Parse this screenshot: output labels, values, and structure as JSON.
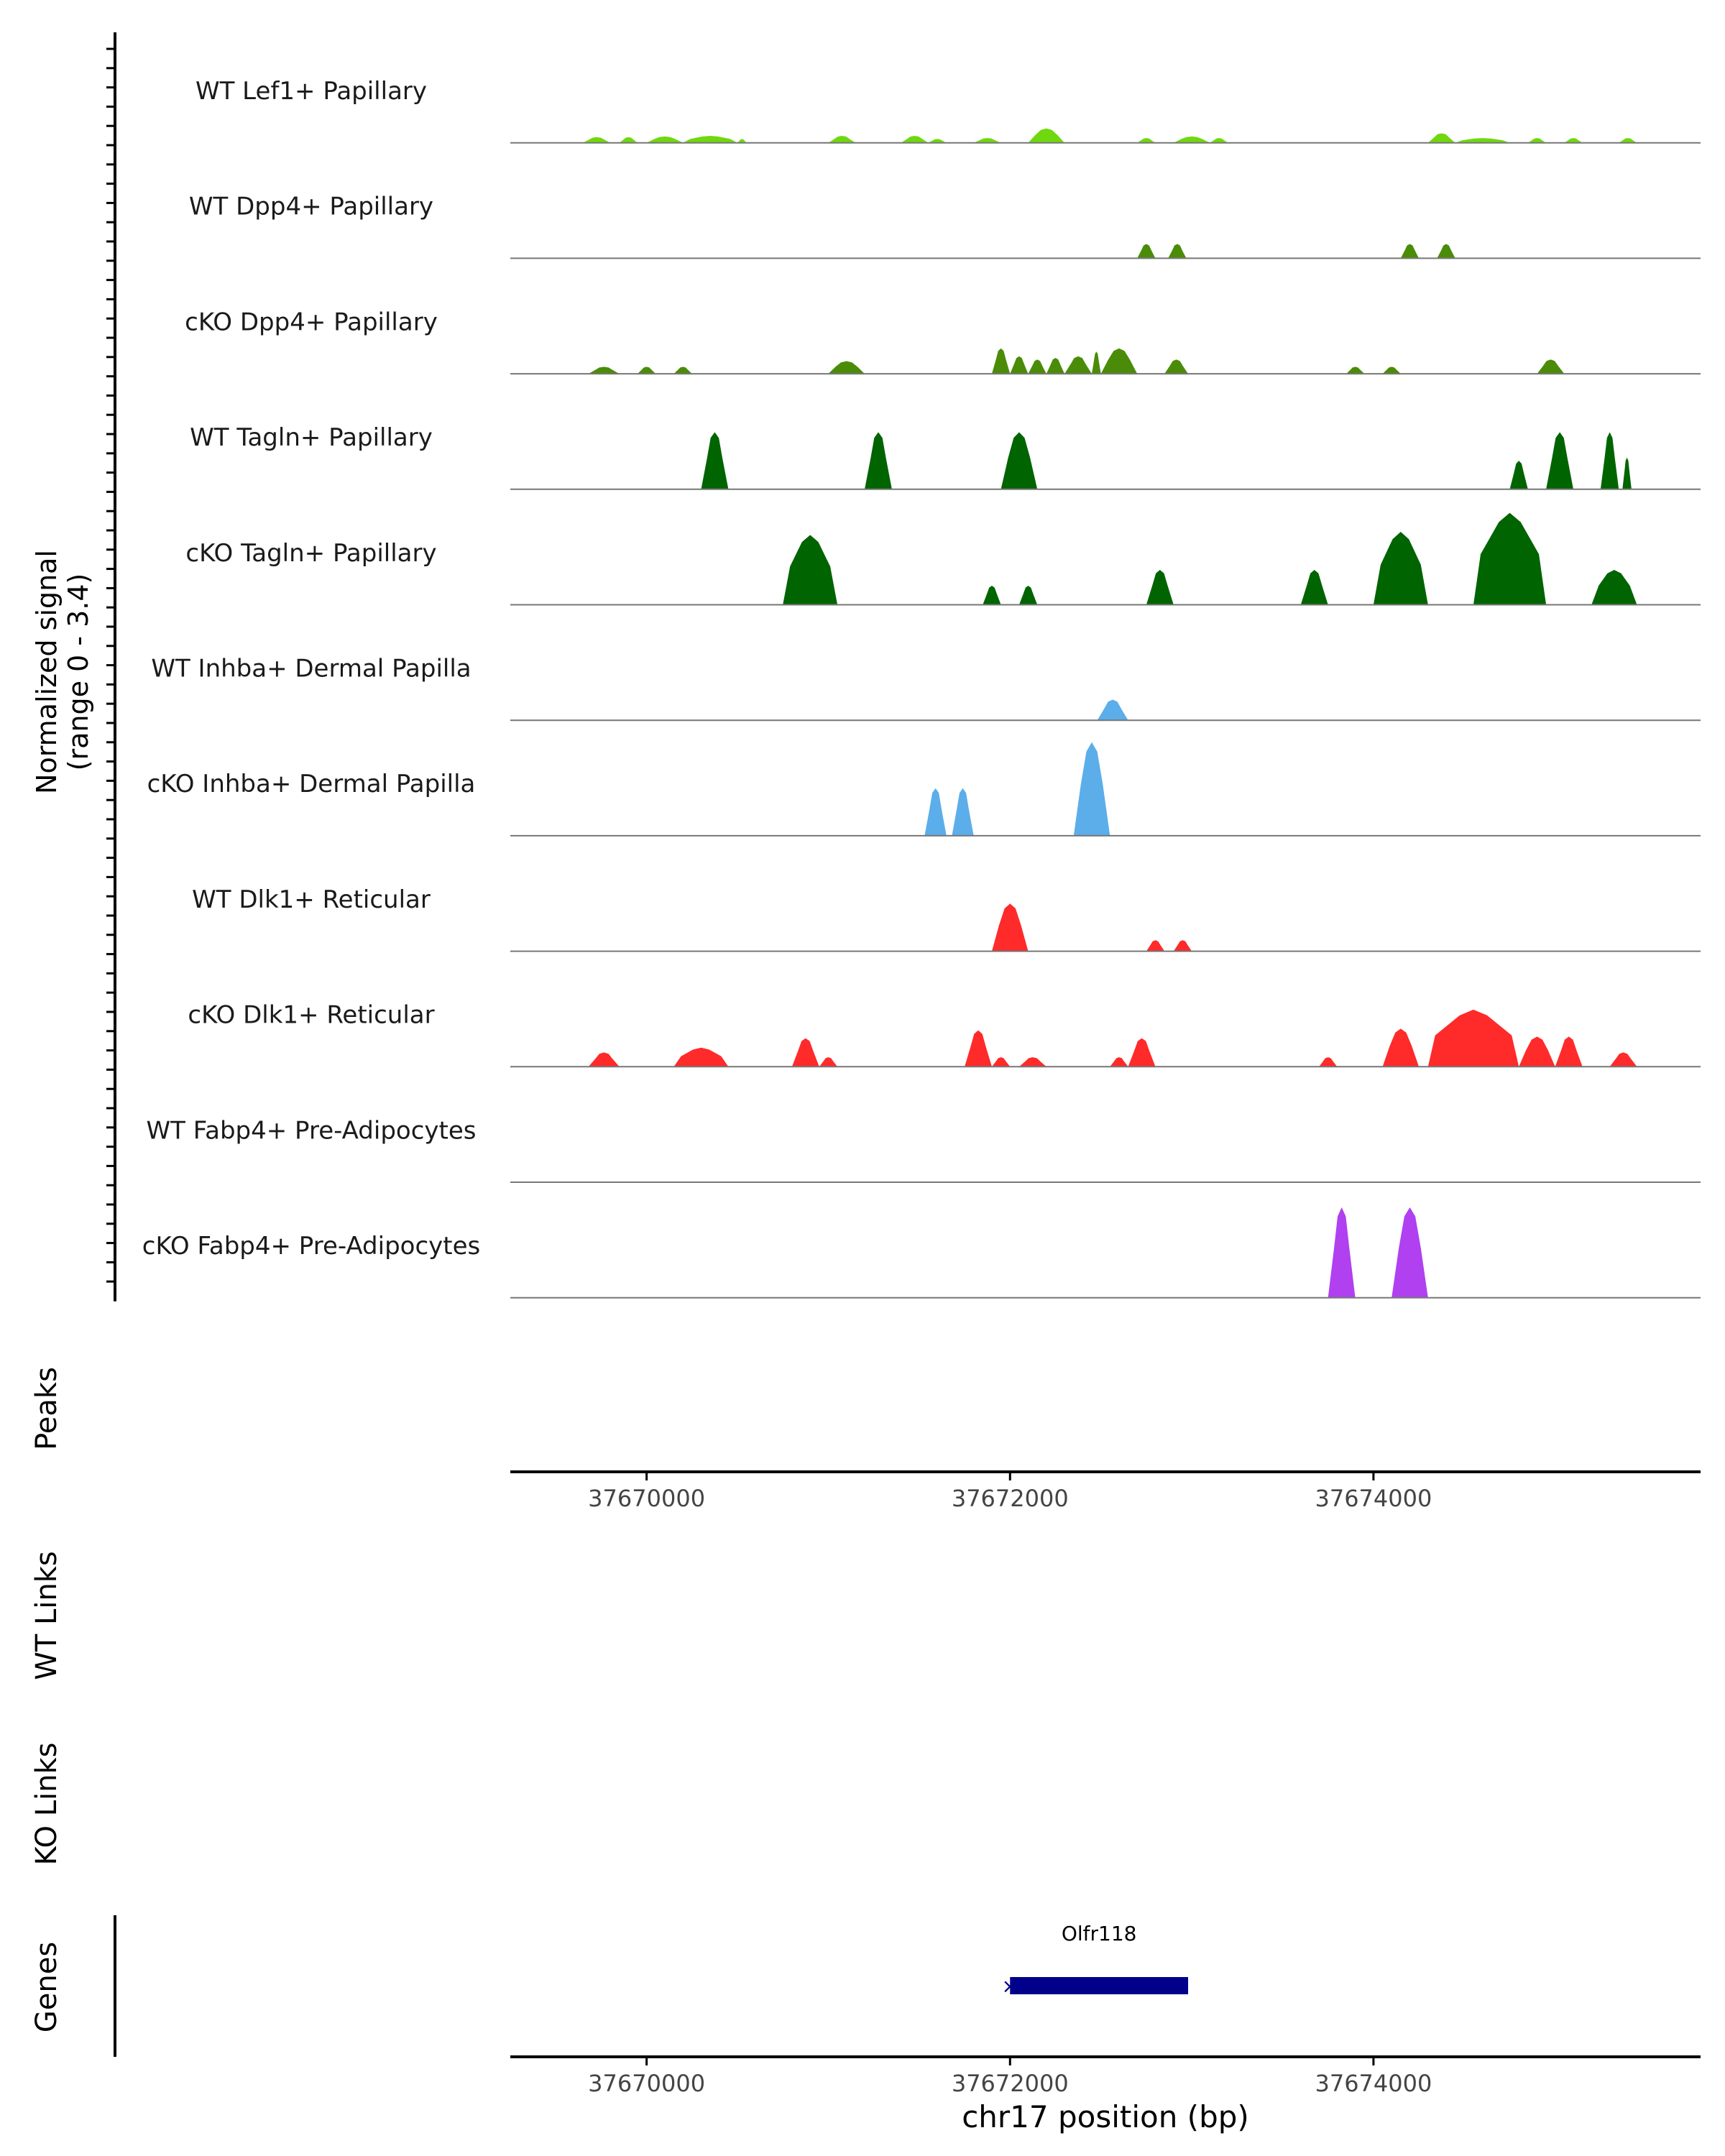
{
  "chart_data": {
    "type": "area",
    "chromosome": "chr17",
    "x_range": [
      37669250,
      37675800
    ],
    "y_range": [
      0,
      3.4
    ],
    "y_axis_label_line1": "Normalized signal",
    "y_axis_label_line2": "(range 0 - 3.4)",
    "x_axis_label": "chr17 position (bp)",
    "x_ticks": [
      37670000,
      37672000,
      37674000
    ],
    "x_tick_labels": [
      "37670000",
      "37672000",
      "37674000"
    ],
    "tracks": [
      {
        "name": "WT Lef1+ Papillary",
        "color": "#6fd80e",
        "peaks": [
          [
            37669650,
            37669800,
            0.18
          ],
          [
            37669850,
            37669950,
            0.18
          ],
          [
            37670000,
            37670200,
            0.2
          ],
          [
            37670200,
            37670500,
            0.22
          ],
          [
            37670500,
            37670550,
            0.12
          ],
          [
            37671000,
            37671150,
            0.22
          ],
          [
            37671400,
            37671550,
            0.22
          ],
          [
            37671550,
            37671650,
            0.12
          ],
          [
            37671800,
            37671950,
            0.15
          ],
          [
            37672100,
            37672300,
            0.45
          ],
          [
            37672700,
            37672800,
            0.15
          ],
          [
            37672900,
            37673100,
            0.2
          ],
          [
            37673100,
            37673200,
            0.15
          ],
          [
            37674300,
            37674450,
            0.3
          ],
          [
            37674450,
            37674750,
            0.15
          ],
          [
            37674850,
            37674950,
            0.15
          ],
          [
            37675050,
            37675150,
            0.15
          ],
          [
            37675350,
            37675450,
            0.15
          ]
        ]
      },
      {
        "name": "WT Dpp4+ Papillary",
        "color": "#4a8c08",
        "peaks": [
          [
            37672700,
            37672800,
            0.45
          ],
          [
            37672870,
            37672970,
            0.45
          ],
          [
            37674150,
            37674250,
            0.45
          ],
          [
            37674350,
            37674450,
            0.45
          ]
        ]
      },
      {
        "name": "cKO Dpp4+ Papillary",
        "color": "#4a8c08",
        "peaks": [
          [
            37669680,
            37669850,
            0.22
          ],
          [
            37669950,
            37670050,
            0.22
          ],
          [
            37670150,
            37670250,
            0.22
          ],
          [
            37671000,
            37671200,
            0.4
          ],
          [
            37671900,
            37672000,
            0.8
          ],
          [
            37672000,
            37672100,
            0.55
          ],
          [
            37672100,
            37672200,
            0.45
          ],
          [
            37672200,
            37672300,
            0.5
          ],
          [
            37672300,
            37672450,
            0.55
          ],
          [
            37672450,
            37672500,
            0.7
          ],
          [
            37672500,
            37672700,
            0.8
          ],
          [
            37672850,
            37672980,
            0.45
          ],
          [
            37673850,
            37673950,
            0.22
          ],
          [
            37674050,
            37674150,
            0.22
          ],
          [
            37674900,
            37675050,
            0.45
          ]
        ]
      },
      {
        "name": "WT Tagln+ Papillary",
        "color": "#006400",
        "peaks": [
          [
            37670300,
            37670450,
            1.8
          ],
          [
            37671200,
            37671350,
            1.8
          ],
          [
            37671950,
            37672150,
            1.8
          ],
          [
            37674750,
            37674850,
            0.9
          ],
          [
            37674950,
            37675100,
            1.8
          ],
          [
            37675250,
            37675350,
            1.8
          ],
          [
            37675370,
            37675420,
            1.0
          ]
        ]
      },
      {
        "name": "cKO Tagln+ Papillary",
        "color": "#006400",
        "peaks": [
          [
            37670750,
            37671050,
            2.2
          ],
          [
            37671850,
            37671950,
            0.6
          ],
          [
            37672050,
            37672150,
            0.6
          ],
          [
            37672750,
            37672900,
            1.1
          ],
          [
            37673600,
            37673750,
            1.1
          ],
          [
            37674000,
            37674300,
            2.3
          ],
          [
            37674550,
            37674950,
            2.9
          ],
          [
            37675200,
            37675450,
            1.1
          ]
        ]
      },
      {
        "name": "WT Inhba+ Dermal Papilla",
        "color": "#5baeea",
        "peaks": [
          [
            37672480,
            37672650,
            0.65
          ]
        ]
      },
      {
        "name": "cKO Inhba+ Dermal Papilla",
        "color": "#5baeea",
        "peaks": [
          [
            37671530,
            37671650,
            1.5
          ],
          [
            37671680,
            37671800,
            1.5
          ],
          [
            37672350,
            37672550,
            2.95
          ]
        ]
      },
      {
        "name": "WT Dlk1+ Reticular",
        "color": "#ff2a2a",
        "peaks": [
          [
            37671900,
            37672100,
            1.5
          ],
          [
            37672750,
            37672850,
            0.35
          ],
          [
            37672900,
            37673000,
            0.35
          ]
        ]
      },
      {
        "name": "cKO Dlk1+ Reticular",
        "color": "#ff2a2a",
        "peaks": [
          [
            37669680,
            37669850,
            0.45
          ],
          [
            37670150,
            37670450,
            0.6
          ],
          [
            37670800,
            37670950,
            0.9
          ],
          [
            37670950,
            37671050,
            0.3
          ],
          [
            37671750,
            37671900,
            1.15
          ],
          [
            37671900,
            37672000,
            0.3
          ],
          [
            37672050,
            37672200,
            0.3
          ],
          [
            37672550,
            37672650,
            0.3
          ],
          [
            37672650,
            37672800,
            0.9
          ],
          [
            37673700,
            37673800,
            0.3
          ],
          [
            37674050,
            37674250,
            1.2
          ],
          [
            37674300,
            37674800,
            1.8
          ],
          [
            37674800,
            37675000,
            0.95
          ],
          [
            37675000,
            37675150,
            0.95
          ],
          [
            37675300,
            37675450,
            0.45
          ]
        ]
      },
      {
        "name": "WT Fabp4+ Pre-Adipocytes",
        "color": "#9d40f0",
        "peaks": []
      },
      {
        "name": "cKO Fabp4+ Pre-Adipocytes",
        "color": "#b040f0",
        "peaks": [
          [
            37673750,
            37673900,
            2.85
          ],
          [
            37674100,
            37674300,
            2.85
          ]
        ]
      }
    ],
    "side_panels": [
      {
        "key": "peaks",
        "label": "Peaks"
      },
      {
        "key": "wt_links",
        "label": "WT Links"
      },
      {
        "key": "ko_links",
        "label": "KO Links"
      },
      {
        "key": "genes",
        "label": "Genes"
      }
    ],
    "gene": {
      "name": "Olfr118",
      "start": 37672000,
      "end": 37672980,
      "strand": "-",
      "color": "#00008b"
    }
  }
}
